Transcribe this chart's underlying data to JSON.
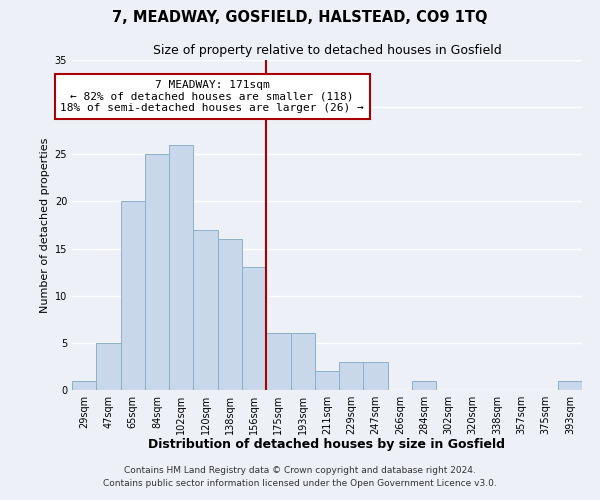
{
  "title": "7, MEADWAY, GOSFIELD, HALSTEAD, CO9 1TQ",
  "subtitle": "Size of property relative to detached houses in Gosfield",
  "xlabel": "Distribution of detached houses by size in Gosfield",
  "ylabel": "Number of detached properties",
  "bar_labels": [
    "29sqm",
    "47sqm",
    "65sqm",
    "84sqm",
    "102sqm",
    "120sqm",
    "138sqm",
    "156sqm",
    "175sqm",
    "193sqm",
    "211sqm",
    "229sqm",
    "247sqm",
    "266sqm",
    "284sqm",
    "302sqm",
    "320sqm",
    "338sqm",
    "357sqm",
    "375sqm",
    "393sqm"
  ],
  "bar_values": [
    1,
    5,
    20,
    25,
    26,
    17,
    16,
    13,
    6,
    6,
    2,
    3,
    3,
    0,
    1,
    0,
    0,
    0,
    0,
    0,
    1
  ],
  "ylim": [
    0,
    35
  ],
  "yticks": [
    0,
    5,
    10,
    15,
    20,
    25,
    30,
    35
  ],
  "bar_color": "#c8d8ea",
  "bar_edge_color": "#8ab0cc",
  "vline_x_index": 8,
  "vline_color": "#aa0000",
  "annotation_title": "7 MEADWAY: 171sqm",
  "annotation_line1": "← 82% of detached houses are smaller (118)",
  "annotation_line2": "18% of semi-detached houses are larger (26) →",
  "annotation_box_facecolor": "#ffffff",
  "annotation_box_edgecolor": "#aa0000",
  "background_color": "#edf1f7",
  "grid_color": "#ffffff",
  "footer1": "Contains HM Land Registry data © Crown copyright and database right 2024.",
  "footer2": "Contains public sector information licensed under the Open Government Licence v3.0.",
  "title_fontsize": 10.5,
  "subtitle_fontsize": 9,
  "xlabel_fontsize": 9,
  "ylabel_fontsize": 8,
  "tick_fontsize": 7,
  "annotation_fontsize": 8,
  "footer_fontsize": 6.5
}
